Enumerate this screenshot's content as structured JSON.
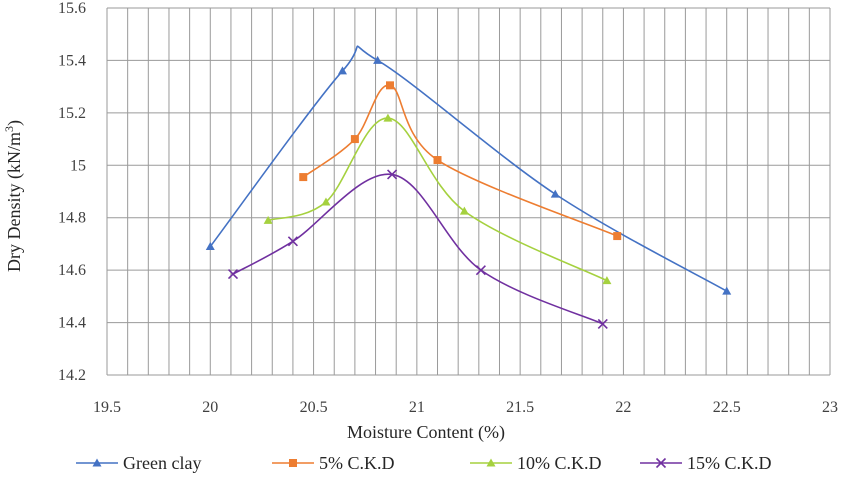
{
  "chart_data": {
    "type": "line",
    "title": "",
    "xlabel": "Moisture Content (%)",
    "ylabel_main": "Dry Density (kN/m",
    "ylabel_sup": "3",
    "ylabel_end": ")",
    "xlim": [
      19.5,
      23
    ],
    "ylim": [
      14.2,
      15.6
    ],
    "x_ticks": [
      "19.5",
      "20",
      "20.5",
      "21",
      "21.5",
      "22",
      "22.5",
      "23"
    ],
    "y_ticks": [
      "14.2",
      "14.4",
      "14.6",
      "14.8",
      "15",
      "15.2",
      "15.4",
      "15.6"
    ],
    "grid": true,
    "legend_position": "bottom",
    "smooth": true,
    "series": [
      {
        "name": "Green clay",
        "color": "#4472C4",
        "marker": "triangle",
        "points": [
          [
            20.0,
            14.69
          ],
          [
            20.64,
            15.36
          ],
          [
            20.81,
            15.4
          ],
          [
            21.67,
            14.89
          ],
          [
            22.5,
            14.52
          ]
        ]
      },
      {
        "name": "5% C.K.D",
        "color": "#ED7D31",
        "marker": "square",
        "points": [
          [
            20.45,
            14.955
          ],
          [
            20.7,
            15.1
          ],
          [
            20.87,
            15.305
          ],
          [
            21.1,
            15.02
          ],
          [
            21.97,
            14.73
          ]
        ]
      },
      {
        "name": "10% C.K.D",
        "color": "#A5D13F",
        "marker": "triangle",
        "points": [
          [
            20.28,
            14.79
          ],
          [
            20.56,
            14.86
          ],
          [
            20.86,
            15.18
          ],
          [
            21.23,
            14.825
          ],
          [
            21.92,
            14.56
          ]
        ]
      },
      {
        "name": "15% C.K.D",
        "color": "#7030A0",
        "marker": "x",
        "points": [
          [
            20.11,
            14.585
          ],
          [
            20.4,
            14.71
          ],
          [
            20.88,
            14.965
          ],
          [
            21.31,
            14.6
          ],
          [
            21.9,
            14.395
          ]
        ]
      }
    ]
  }
}
